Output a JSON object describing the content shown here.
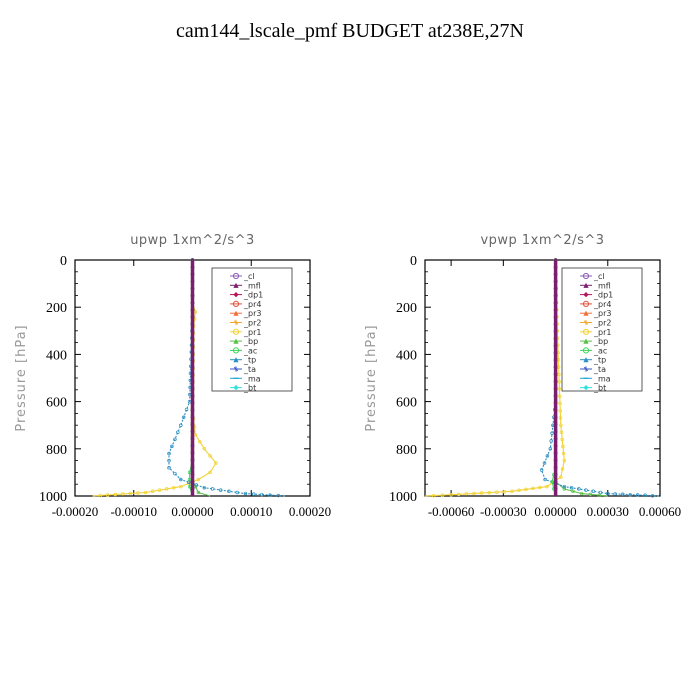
{
  "figure": {
    "title": "cam144_lscale_pmf  BUDGET at238E,27N"
  },
  "legend_items": [
    {
      "label": "_cl",
      "color": "#8e5fb5",
      "marker": "circle"
    },
    {
      "label": "_mfl",
      "color": "#7a1f6e",
      "marker": "triangle"
    },
    {
      "label": "_dp1",
      "color": "#b3145a",
      "marker": "diamond"
    },
    {
      "label": "_pr4",
      "color": "#e0533a",
      "marker": "circle"
    },
    {
      "label": "_pr3",
      "color": "#f0703a",
      "marker": "triangle"
    },
    {
      "label": "_pr2",
      "color": "#f3a62e",
      "marker": "star"
    },
    {
      "label": "_pr1",
      "color": "#f2d232",
      "marker": "circle"
    },
    {
      "label": "_bp",
      "color": "#5cbf4a",
      "marker": "triangle"
    },
    {
      "label": "_ac",
      "color": "#3cd65a",
      "marker": "circle"
    },
    {
      "label": "_tp",
      "color": "#2a8fc2",
      "marker": "triangle"
    },
    {
      "label": "_ta",
      "color": "#3a55c8",
      "marker": "star"
    },
    {
      "label": "_ma",
      "color": "#1fa4d9",
      "marker": "dash"
    },
    {
      "label": "_bt",
      "color": "#2ee0e0",
      "marker": "diamond"
    }
  ],
  "chart_data": [
    {
      "type": "line",
      "title": "upwp   1xm^2/s^3",
      "ylabel": "Pressure [hPa]",
      "xlim": [
        -0.0002,
        0.0002
      ],
      "ylim": [
        1000,
        0
      ],
      "xticks": [
        -0.0002,
        -0.0001,
        0.0,
        0.0001,
        0.0002
      ],
      "xtick_labels": [
        "-0.00020",
        "-0.00010",
        "0.00000",
        "0.00010",
        "0.00020"
      ],
      "yticks": [
        0,
        200,
        400,
        600,
        800,
        1000
      ],
      "ytick_labels": [
        "0",
        "200",
        "400",
        "600",
        "800",
        "1000"
      ],
      "legend": "top-right",
      "series": [
        {
          "name": "_cl",
          "color": "#8e5fb5",
          "x": [
            0,
            0
          ],
          "y": [
            0,
            1000
          ]
        },
        {
          "name": "_dp1",
          "color": "#b3145a",
          "x": [
            0,
            0
          ],
          "y": [
            0,
            1000
          ]
        },
        {
          "name": "_pr1",
          "color": "#f2d232",
          "x": [
            0,
            0,
            5e-06,
            2e-06,
            0,
            5e-06,
            2e-05,
            4e-05,
            3e-05,
            1e-05,
            -2e-05,
            -8e-05,
            -0.00017
          ],
          "y": [
            0,
            180,
            220,
            280,
            640,
            740,
            800,
            860,
            900,
            930,
            960,
            985,
            1000
          ]
        },
        {
          "name": "_bp",
          "color": "#5cbf4a",
          "x": [
            0,
            0,
            5e-06,
            1e-05,
            3e-05
          ],
          "y": [
            0,
            930,
            960,
            985,
            1000
          ]
        },
        {
          "name": "_ac",
          "color": "#3cd65a",
          "x": [
            0,
            0,
            -5e-06,
            -5e-06,
            0
          ],
          "y": [
            0,
            850,
            900,
            960,
            1000
          ]
        },
        {
          "name": "_tp",
          "color": "#2a8fc2",
          "x": [
            0,
            0,
            -5e-06,
            -2e-05,
            -4e-05,
            -4e-05,
            -2e-05,
            2e-05,
            9e-05,
            0.00016
          ],
          "y": [
            0,
            240,
            600,
            700,
            820,
            880,
            930,
            965,
            990,
            1000
          ]
        },
        {
          "name": "_mfl",
          "color": "#7a1f6e",
          "x": [
            0,
            0
          ],
          "y": [
            0,
            1000
          ]
        }
      ]
    },
    {
      "type": "line",
      "title": "vpwp   1xm^2/s^3",
      "ylabel": "Pressure [hPa]",
      "xlim": [
        -0.00075,
        0.0006
      ],
      "ylim": [
        1000,
        0
      ],
      "xticks": [
        -0.0006,
        -0.0003,
        0.0,
        0.0003,
        0.0006
      ],
      "xtick_labels": [
        "-0.00060",
        "-0.00030",
        "0.00000",
        "0.00030",
        "0.00060"
      ],
      "yticks": [
        0,
        200,
        400,
        600,
        800,
        1000
      ],
      "ytick_labels": [
        "0",
        "200",
        "400",
        "600",
        "800",
        "1000"
      ],
      "legend": "top-right",
      "series": [
        {
          "name": "_cl",
          "color": "#8e5fb5",
          "x": [
            0,
            0
          ],
          "y": [
            0,
            1000
          ]
        },
        {
          "name": "_dp1",
          "color": "#b3145a",
          "x": [
            0,
            0
          ],
          "y": [
            0,
            1000
          ]
        },
        {
          "name": "_pr1",
          "color": "#f2d232",
          "x": [
            0,
            1e-05,
            3e-05,
            5e-05,
            3e-05,
            -5e-05,
            -0.00025,
            -0.0006,
            -0.00075
          ],
          "y": [
            0,
            300,
            700,
            850,
            920,
            960,
            980,
            995,
            1000
          ]
        },
        {
          "name": "_bp",
          "color": "#5cbf4a",
          "x": [
            0,
            0,
            5e-05,
            0.00015,
            0.0003
          ],
          "y": [
            0,
            940,
            970,
            990,
            1000
          ]
        },
        {
          "name": "_tp",
          "color": "#2a8fc2",
          "x": [
            0,
            0,
            -3e-05,
            -8e-05,
            -6e-05,
            5e-05,
            0.0003,
            0.0006
          ],
          "y": [
            0,
            600,
            800,
            890,
            930,
            960,
            990,
            1000
          ]
        },
        {
          "name": "_ac",
          "color": "#3cd65a",
          "x": [
            0,
            0,
            -2e-05,
            0
          ],
          "y": [
            0,
            880,
            940,
            1000
          ]
        },
        {
          "name": "_mfl",
          "color": "#7a1f6e",
          "x": [
            0,
            0
          ],
          "y": [
            0,
            1000
          ]
        }
      ]
    }
  ]
}
